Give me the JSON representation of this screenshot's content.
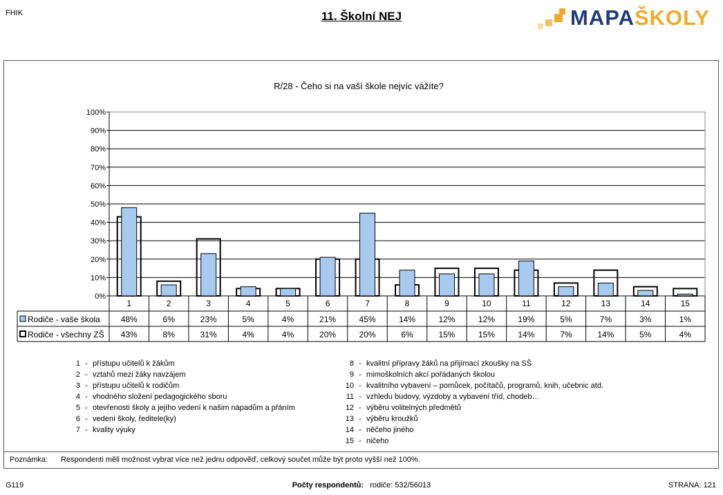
{
  "header": {
    "code": "FHIK",
    "title": "11. Školní NEJ",
    "logo_main": "MAPA",
    "logo_accent": "ŠKOLY"
  },
  "chart_data": {
    "type": "bar",
    "title": "R/28 - Čeho si na vaší škole nejvíc vážíte?",
    "categories": [
      "1",
      "2",
      "3",
      "4",
      "5",
      "6",
      "7",
      "8",
      "9",
      "10",
      "11",
      "12",
      "13",
      "14",
      "15"
    ],
    "ylim": [
      0,
      100
    ],
    "yticks": [
      "0%",
      "10%",
      "20%",
      "30%",
      "40%",
      "50%",
      "60%",
      "70%",
      "80%",
      "90%",
      "100%"
    ],
    "grid": true,
    "series": [
      {
        "name": "Rodiče - vaše škola",
        "values": [
          48,
          6,
          23,
          5,
          4,
          21,
          45,
          14,
          12,
          12,
          19,
          5,
          7,
          3,
          1
        ],
        "labels": [
          "48%",
          "6%",
          "23%",
          "5%",
          "4%",
          "21%",
          "45%",
          "14%",
          "12%",
          "12%",
          "19%",
          "5%",
          "7%",
          "3%",
          "1%"
        ],
        "color": "#a6caf0"
      },
      {
        "name": "Rodiče - všechny ZŠ",
        "values": [
          43,
          8,
          31,
          4,
          4,
          20,
          20,
          6,
          15,
          15,
          14,
          7,
          14,
          5,
          4
        ],
        "labels": [
          "43%",
          "8%",
          "31%",
          "4%",
          "4%",
          "20%",
          "20%",
          "6%",
          "15%",
          "15%",
          "14%",
          "7%",
          "14%",
          "5%",
          "4%"
        ],
        "color": "#000000"
      }
    ]
  },
  "legend_left": [
    {
      "num": "1",
      "text": "přístupu učitelů k žákům"
    },
    {
      "num": "2",
      "text": "vztahů mezi žáky navzájem"
    },
    {
      "num": "3",
      "text": "přístupu učitelů k rodičům"
    },
    {
      "num": "4",
      "text": "vhodného složení pedagogického sboru"
    },
    {
      "num": "5",
      "text": "otevřenosti školy a jejího vedení k našim nápadům a přáním"
    },
    {
      "num": "6",
      "text": "vedení školy, ředitele(ky)"
    },
    {
      "num": "7",
      "text": "kvality výuky"
    }
  ],
  "legend_right": [
    {
      "num": "8",
      "text": "kvalitní přípravy žáků na přijímací zkoušky na SŠ"
    },
    {
      "num": "9",
      "text": "mimoškolních akcí pořádaných školou"
    },
    {
      "num": "10",
      "text": "kvalitního vybavení – pomůcek, počítačů, programů, knih, učebnic atd."
    },
    {
      "num": "11",
      "text": "vzhledu budovy, výzdoby a vybavení tříd, chodeb…"
    },
    {
      "num": "12",
      "text": "výběru volitelných předmětů"
    },
    {
      "num": "13",
      "text": "výběru kroužků"
    },
    {
      "num": "14",
      "text": "něčeho jiného"
    },
    {
      "num": "15",
      "text": "ničeho"
    }
  ],
  "note": {
    "label": "Poznámka:",
    "text": "Respondenti měli možnost vybrat více než jednu odpověď, celkový součet může být proto vyšší než 100%."
  },
  "footer": {
    "left": "G119",
    "center_label": "Počty respondentů:",
    "center_value": "rodiče: 532/56013",
    "right": "STRANA: 121"
  }
}
